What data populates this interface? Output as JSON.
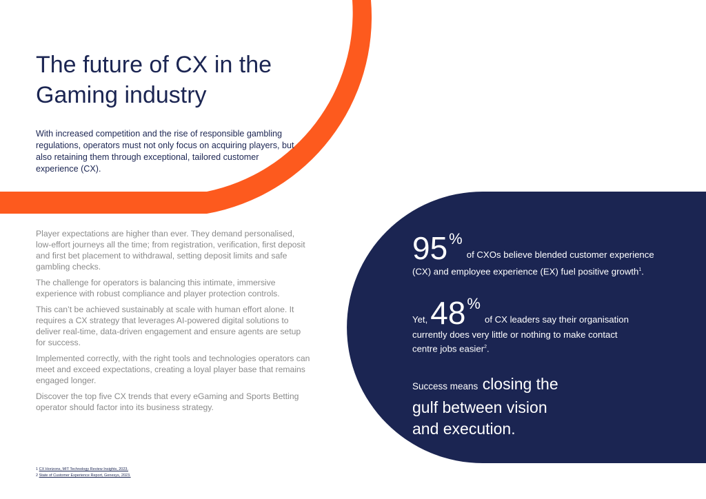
{
  "title": "The future of CX in the Gaming industry",
  "intro": "With increased competition and the rise of responsible gambling regulations, operators must not only focus on acquiring players, but also retaining them through exceptional, tailored customer experience (CX).",
  "body_paragraphs": [
    "Player expectations are higher than ever. They demand personalised, low-effort journeys all the time; from registration, verification, first deposit and first bet placement to withdrawal, setting deposit limits and safe gambling checks.",
    "The challenge for operators is balancing this intimate, immersive experience with robust compliance and player protection controls.",
    "This can’t be achieved sustainably at scale with human effort alone. It requires a CX strategy that leverages AI-powered digital solutions to deliver real-time, data-driven engagement and ensure agents are setup for success.",
    "Implemented correctly, with the right tools and technologies operators can meet and exceed expectations, creating a loyal player base that remains engaged longer.",
    "Discover the top five CX trends that every eGaming and Sports Betting operator should factor into its business strategy."
  ],
  "stat1": {
    "number": "95",
    "percent": "%",
    "text_a": "of CXOs believe blended customer experience",
    "text_b": "(CX) and employee experience (EX) fuel positive growth",
    "footnote_ref": "1",
    "end": "."
  },
  "stat2": {
    "prefix": "Yet,",
    "number": "48",
    "percent": "%",
    "text_a": "of CX leaders say their organisation",
    "text_b": "currently does very little or nothing to make contact",
    "text_c": "centre jobs easier",
    "footnote_ref": "2",
    "end": "."
  },
  "success": {
    "lead": "Success means",
    "emph_a": "closing the",
    "emph_b": "gulf between vision",
    "emph_c": "and execution."
  },
  "footnotes": [
    {
      "num": "1",
      "text": "CX Horizons, MIT Technology Review Insights, 2023."
    },
    {
      "num": "2",
      "text": "State of Customer Experience Report, Genesys, 2023."
    }
  ],
  "colors": {
    "accent_orange": "#fd5a1e",
    "navy": "#1b2552",
    "body_grey": "#8a8a8a"
  }
}
